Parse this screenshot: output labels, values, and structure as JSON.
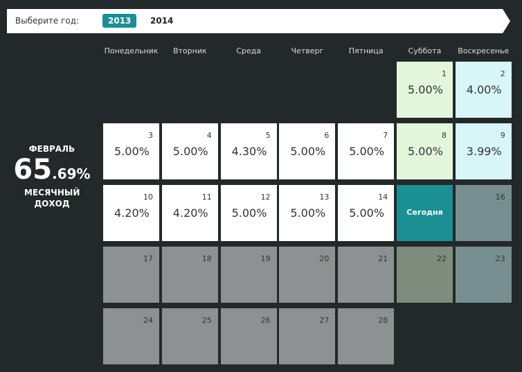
{
  "year_selector": {
    "label": "Выберите год:",
    "years": [
      "2013",
      "2014"
    ],
    "active": 0
  },
  "weekdays": [
    "Понедельник",
    "Вторник",
    "Среда",
    "Четверг",
    "Пятница",
    "Суббота",
    "Воскресенье"
  ],
  "summary": {
    "month": "ФЕВРАЛЬ",
    "value_int": "65",
    "value_frac": ".69%",
    "caption": "МЕСЯЧНЫЙ ДОХОД"
  },
  "weeks": [
    [
      null,
      null,
      null,
      null,
      null,
      {
        "day": 1,
        "rate": "5.00%"
      },
      {
        "day": 2,
        "rate": "4.00%"
      }
    ],
    [
      {
        "day": 3,
        "rate": "5.00%"
      },
      {
        "day": 4,
        "rate": "5.00%"
      },
      {
        "day": 5,
        "rate": "4.30%"
      },
      {
        "day": 6,
        "rate": "5.00%"
      },
      {
        "day": 7,
        "rate": "5.00%"
      },
      {
        "day": 8,
        "rate": "5.00%"
      },
      {
        "day": 9,
        "rate": "3.99%"
      }
    ],
    [
      {
        "day": 10,
        "rate": "4.20%"
      },
      {
        "day": 11,
        "rate": "4.20%"
      },
      {
        "day": 12,
        "rate": "5.00%"
      },
      {
        "day": 13,
        "rate": "5.00%"
      },
      {
        "day": 14,
        "rate": "5.00%"
      },
      {
        "label": "Сегодня"
      },
      {
        "day": 16
      }
    ],
    [
      {
        "day": 17
      },
      {
        "day": 18
      },
      {
        "day": 19
      },
      {
        "day": 20
      },
      {
        "day": 21
      },
      {
        "day": 22
      },
      {
        "day": 23
      }
    ],
    [
      {
        "day": 24
      },
      {
        "day": 25
      },
      {
        "day": 26
      },
      {
        "day": 27
      },
      {
        "day": 28
      }
    ]
  ]
}
